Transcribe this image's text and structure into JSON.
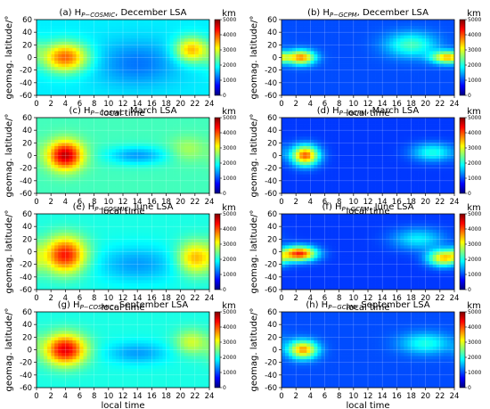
{
  "figure": {
    "colorbar_unit": "km",
    "colorbar_ticks": [
      0,
      1000,
      2000,
      3000,
      4000,
      5000
    ],
    "colormap": [
      "#00007f",
      "#0000ff",
      "#007fff",
      "#00ffff",
      "#7fff7f",
      "#ffff00",
      "#ff7f00",
      "#ff0000",
      "#7f0000"
    ]
  },
  "chart_data": [
    {
      "type": "heatmap",
      "title_prefix": "(a) H",
      "title_sub": "P−COSMIC",
      "title_suffix": ", December LSA",
      "xlabel": "local time",
      "ylabel": "geomag. latitude/°",
      "xlim": [
        0,
        24
      ],
      "ylim": [
        -60,
        60
      ],
      "xticks": [
        0,
        2,
        4,
        6,
        8,
        10,
        12,
        14,
        16,
        18,
        20,
        22,
        24
      ],
      "yticks": [
        -60,
        -40,
        -20,
        0,
        20,
        40,
        60
      ],
      "zlim": [
        0,
        5000
      ],
      "background": 1800,
      "features": [
        {
          "lt": 4,
          "lat": 0,
          "peak_km": 3900,
          "lt_width": 2.2,
          "lat_width": 16
        },
        {
          "lt": 21.5,
          "lat": 12,
          "peak_km": 3500,
          "lt_width": 1.6,
          "lat_width": 14
        },
        {
          "lt": 14,
          "lat": -10,
          "peak_km": 1200,
          "lt_width": 4,
          "lat_width": 25
        }
      ]
    },
    {
      "type": "heatmap",
      "title_prefix": "(b) H",
      "title_sub": "P−GCPM",
      "title_suffix": ", December LSA",
      "xlabel": "local time",
      "ylabel": "geomag. latitude/°",
      "xlim": [
        0,
        24
      ],
      "ylim": [
        -60,
        60
      ],
      "xticks": [
        0,
        2,
        4,
        6,
        8,
        10,
        12,
        14,
        16,
        18,
        20,
        22,
        24
      ],
      "yticks": [
        -60,
        -40,
        -20,
        0,
        20,
        40,
        60
      ],
      "zlim": [
        0,
        5000
      ],
      "background": 1000,
      "features": [
        {
          "lt": 2.8,
          "lat": 0,
          "peak_km": 3600,
          "lt_width": 1.3,
          "lat_width": 8
        },
        {
          "lt": 23,
          "lat": 0,
          "peak_km": 3400,
          "lt_width": 1.5,
          "lat_width": 7
        },
        {
          "lt": 18,
          "lat": 20,
          "peak_km": 2200,
          "lt_width": 2.5,
          "lat_width": 14
        }
      ]
    },
    {
      "type": "heatmap",
      "title_prefix": "(c) H",
      "title_sub": "P−COSMIC",
      "title_suffix": ", March LSA",
      "xlabel": "local time",
      "ylabel": "geomag. latitude/°",
      "xlim": [
        0,
        24
      ],
      "ylim": [
        -60,
        60
      ],
      "xticks": [
        0,
        2,
        4,
        6,
        8,
        10,
        12,
        14,
        16,
        18,
        20,
        22,
        24
      ],
      "yticks": [
        -60,
        -40,
        -20,
        0,
        20,
        40,
        60
      ],
      "zlim": [
        0,
        5000
      ],
      "background": 2200,
      "features": [
        {
          "lt": 4,
          "lat": 0,
          "peak_km": 4700,
          "lt_width": 1.7,
          "lat_width": 16
        },
        {
          "lt": 21,
          "lat": 10,
          "peak_km": 2700,
          "lt_width": 1.8,
          "lat_width": 14
        },
        {
          "lt": 14,
          "lat": 0,
          "peak_km": 1400,
          "lt_width": 3,
          "lat_width": 10
        }
      ]
    },
    {
      "type": "heatmap",
      "title_prefix": "(d) H",
      "title_sub": "P−GCPM",
      "title_suffix": ", March LSA",
      "xlabel": "local time",
      "ylabel": "geomag. latitude/°",
      "xlim": [
        0,
        24
      ],
      "ylim": [
        -60,
        60
      ],
      "xticks": [
        0,
        2,
        4,
        6,
        8,
        10,
        12,
        14,
        16,
        18,
        20,
        22,
        24
      ],
      "yticks": [
        -60,
        -40,
        -20,
        0,
        20,
        40,
        60
      ],
      "zlim": [
        0,
        5000
      ],
      "background": 900,
      "features": [
        {
          "lt": 3.3,
          "lat": 0,
          "peak_km": 3900,
          "lt_width": 1.3,
          "lat_width": 11
        },
        {
          "lt": 21,
          "lat": 5,
          "peak_km": 2000,
          "lt_width": 2,
          "lat_width": 10
        }
      ]
    },
    {
      "type": "heatmap",
      "title_prefix": "(e) H",
      "title_sub": "P−COSMIC",
      "title_suffix": ", June LSA",
      "xlabel": "local time",
      "ylabel": "geomag. latitude/°",
      "xlim": [
        0,
        24
      ],
      "ylim": [
        -60,
        60
      ],
      "xticks": [
        0,
        2,
        4,
        6,
        8,
        10,
        12,
        14,
        16,
        18,
        20,
        22,
        24
      ],
      "yticks": [
        -60,
        -40,
        -20,
        0,
        20,
        40,
        60
      ],
      "zlim": [
        0,
        5000
      ],
      "background": 2000,
      "features": [
        {
          "lt": 4,
          "lat": -5,
          "peak_km": 4300,
          "lt_width": 2,
          "lat_width": 20
        },
        {
          "lt": 22,
          "lat": -10,
          "peak_km": 3500,
          "lt_width": 1.7,
          "lat_width": 18
        },
        {
          "lt": 14,
          "lat": -20,
          "peak_km": 1400,
          "lt_width": 4,
          "lat_width": 20
        }
      ]
    },
    {
      "type": "heatmap",
      "title_prefix": "(f) H",
      "title_sub": "P−GCPM",
      "title_suffix": ", June LSA",
      "xlabel": "local time",
      "ylabel": "geomag. latitude/°",
      "xlim": [
        0,
        24
      ],
      "ylim": [
        -60,
        60
      ],
      "xticks": [
        0,
        2,
        4,
        6,
        8,
        10,
        12,
        14,
        16,
        18,
        20,
        22,
        24
      ],
      "yticks": [
        -60,
        -40,
        -20,
        0,
        20,
        40,
        60
      ],
      "zlim": [
        0,
        5000
      ],
      "background": 900,
      "features": [
        {
          "lt": 2.5,
          "lat": -3,
          "peak_km": 4200,
          "lt_width": 1.6,
          "lat_width": 8
        },
        {
          "lt": 22.5,
          "lat": -10,
          "peak_km": 3300,
          "lt_width": 1.5,
          "lat_width": 9
        },
        {
          "lt": 19,
          "lat": 20,
          "peak_km": 1800,
          "lt_width": 2.5,
          "lat_width": 12
        }
      ]
    },
    {
      "type": "heatmap",
      "title_prefix": "(g) H",
      "title_sub": "P−COSMIC",
      "title_suffix": ", September LSA",
      "xlabel": "local time",
      "ylabel": "geomag. latitude/°",
      "xlim": [
        0,
        24
      ],
      "ylim": [
        -60,
        60
      ],
      "xticks": [
        0,
        2,
        4,
        6,
        8,
        10,
        12,
        14,
        16,
        18,
        20,
        22,
        24
      ],
      "yticks": [
        -60,
        -40,
        -20,
        0,
        20,
        40,
        60
      ],
      "zlim": [
        0,
        5000
      ],
      "background": 2000,
      "features": [
        {
          "lt": 4,
          "lat": 0,
          "peak_km": 4500,
          "lt_width": 2,
          "lat_width": 17
        },
        {
          "lt": 21.5,
          "lat": 12,
          "peak_km": 2900,
          "lt_width": 1.6,
          "lat_width": 14
        },
        {
          "lt": 14,
          "lat": -5,
          "peak_km": 1400,
          "lt_width": 3,
          "lat_width": 12
        }
      ]
    },
    {
      "type": "heatmap",
      "title_prefix": "(h) H",
      "title_sub": "P−GCPM",
      "title_suffix": ", September LSA",
      "xlabel": "local time",
      "ylabel": "geomag. latitude/°",
      "xlim": [
        0,
        24
      ],
      "ylim": [
        -60,
        60
      ],
      "xticks": [
        0,
        2,
        4,
        6,
        8,
        10,
        12,
        14,
        16,
        18,
        20,
        22,
        24
      ],
      "yticks": [
        -60,
        -40,
        -20,
        0,
        20,
        40,
        60
      ],
      "zlim": [
        0,
        5000
      ],
      "background": 1000,
      "features": [
        {
          "lt": 3,
          "lat": 0,
          "peak_km": 3600,
          "lt_width": 1.4,
          "lat_width": 10
        },
        {
          "lt": 20,
          "lat": 10,
          "peak_km": 2000,
          "lt_width": 2.5,
          "lat_width": 12
        }
      ]
    }
  ]
}
